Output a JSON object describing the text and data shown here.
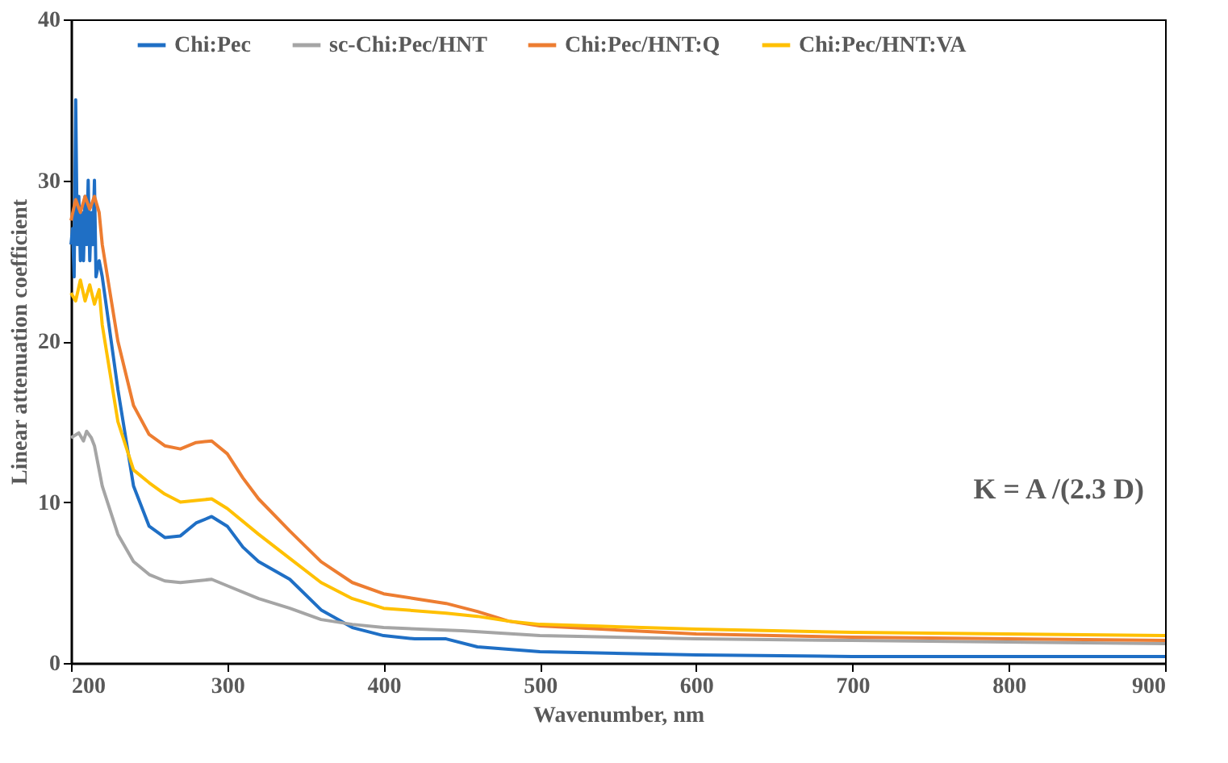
{
  "chart_data": {
    "type": "line",
    "xlabel": "Wavenumber, nm",
    "ylabel": "Linear attenuation coefficient",
    "xlim": [
      200,
      900
    ],
    "xticks": [
      200,
      300,
      400,
      500,
      600,
      700,
      800,
      900
    ],
    "ylim": [
      0,
      40
    ],
    "yticks": [
      0,
      10,
      20,
      30,
      40
    ],
    "grid": false,
    "legend": "top",
    "line_style": "solid",
    "marker": "none",
    "annotations": [
      "K = A /(2.3 D)"
    ],
    "series": [
      {
        "name": "Chi:Pec",
        "color": "#1f6fc5",
        "x": [
          200,
          201,
          202,
          203,
          204,
          205,
          206,
          207,
          208,
          209,
          210,
          211,
          212,
          213,
          214,
          215,
          216,
          218,
          220,
          230,
          240,
          250,
          260,
          270,
          280,
          290,
          300,
          310,
          320,
          340,
          360,
          380,
          400,
          420,
          440,
          460,
          500,
          600,
          700,
          900
        ],
        "values": [
          26,
          27,
          24,
          35,
          26,
          29,
          25,
          28,
          25,
          29,
          26,
          30,
          25,
          28,
          26,
          30,
          24,
          25,
          24,
          17,
          11,
          8.5,
          7.8,
          7.9,
          8.7,
          9.1,
          8.5,
          7.2,
          6.3,
          5.2,
          3.3,
          2.2,
          1.7,
          1.5,
          1.5,
          1.0,
          0.7,
          0.5,
          0.4,
          0.4
        ]
      },
      {
        "name": "sc-Chi:Pec/HNT",
        "color": "#a5a5a5",
        "x": [
          200,
          205,
          208,
          210,
          213,
          215,
          220,
          230,
          240,
          250,
          260,
          270,
          290,
          300,
          320,
          340,
          360,
          380,
          400,
          450,
          500,
          600,
          700,
          900
        ],
        "values": [
          14,
          14.3,
          13.8,
          14.4,
          14,
          13.5,
          11,
          8,
          6.3,
          5.5,
          5.1,
          5.0,
          5.2,
          4.8,
          4.0,
          3.4,
          2.7,
          2.4,
          2.2,
          2.0,
          1.7,
          1.5,
          1.4,
          1.2
        ]
      },
      {
        "name": "Chi:Pec/HNT:Q",
        "color": "#ed7d31",
        "x": [
          200,
          203,
          206,
          209,
          212,
          215,
          218,
          220,
          230,
          240,
          250,
          260,
          270,
          280,
          290,
          300,
          310,
          320,
          340,
          360,
          380,
          400,
          420,
          440,
          460,
          480,
          500,
          600,
          700,
          900
        ],
        "values": [
          27.5,
          28.8,
          28,
          29,
          28.2,
          29,
          28,
          26,
          20,
          16,
          14.2,
          13.5,
          13.3,
          13.7,
          13.8,
          13,
          11.5,
          10.2,
          8.2,
          6.3,
          5,
          4.3,
          4,
          3.7,
          3.2,
          2.6,
          2.3,
          1.8,
          1.6,
          1.4
        ]
      },
      {
        "name": "Chi:Pec/HNT:VA",
        "color": "#ffc000",
        "x": [
          200,
          203,
          206,
          209,
          212,
          215,
          218,
          220,
          230,
          240,
          250,
          260,
          270,
          280,
          290,
          300,
          320,
          340,
          360,
          380,
          400,
          440,
          460,
          480,
          500,
          600,
          700,
          900
        ],
        "values": [
          23,
          22.5,
          23.8,
          22.5,
          23.5,
          22.3,
          23.2,
          21,
          15,
          12,
          11.2,
          10.5,
          10,
          10.1,
          10.2,
          9.6,
          8,
          6.5,
          5,
          4,
          3.4,
          3.1,
          2.9,
          2.6,
          2.4,
          2.1,
          1.9,
          1.7
        ]
      }
    ]
  }
}
